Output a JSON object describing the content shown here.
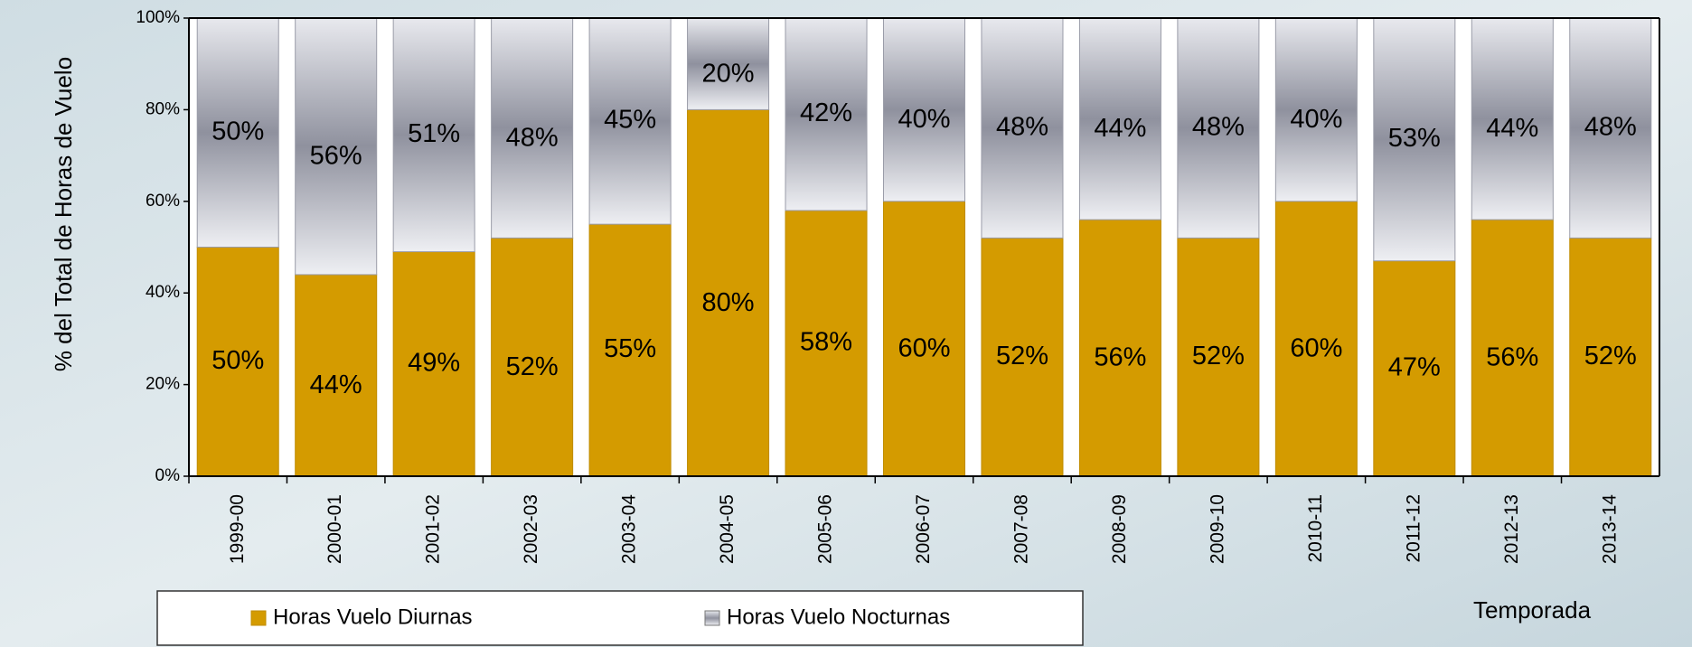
{
  "chart_data": {
    "type": "stacked-bar",
    "categories": [
      "1999-00",
      "2000-01",
      "2001-02",
      "2002-03",
      "2003-04",
      "2004-05",
      "2005-06",
      "2006-07",
      "2007-08",
      "2008-09",
      "2009-10",
      "2010-11",
      "2011-12",
      "2012-13",
      "2013-14"
    ],
    "series": [
      {
        "name": "Horas Vuelo Diurnas",
        "color": "#d49b00",
        "values": [
          50,
          44,
          49,
          52,
          55,
          80,
          58,
          60,
          52,
          56,
          52,
          60,
          47,
          56,
          52
        ],
        "value_labels": [
          "50%",
          "44%",
          "49%",
          "52%",
          "55%",
          "80%",
          "58%",
          "60%",
          "52%",
          "56%",
          "52%",
          "60%",
          "47%",
          "56%",
          "52%"
        ]
      },
      {
        "name": "Horas Vuelo Nocturnas",
        "color": "#a7a9b4",
        "values": [
          50,
          56,
          51,
          48,
          45,
          20,
          42,
          40,
          48,
          44,
          48,
          40,
          53,
          44,
          48
        ],
        "value_labels": [
          "50%",
          "56%",
          "51%",
          "48%",
          "45%",
          "20%",
          "42%",
          "40%",
          "48%",
          "44%",
          "48%",
          "40%",
          "53%",
          "44%",
          "48%"
        ]
      }
    ],
    "ylabel": "% del Total de Horas de Vuelo",
    "xlabel": "Temporada",
    "ylim": [
      0,
      100
    ],
    "yticks": [
      {
        "value": 0,
        "label": "0%"
      },
      {
        "value": 20,
        "label": "20%"
      },
      {
        "value": 40,
        "label": "40%"
      },
      {
        "value": 60,
        "label": "60%"
      },
      {
        "value": 80,
        "label": "80%"
      },
      {
        "value": 100,
        "label": "100%"
      }
    ],
    "legend": "bottom",
    "grid": false
  }
}
